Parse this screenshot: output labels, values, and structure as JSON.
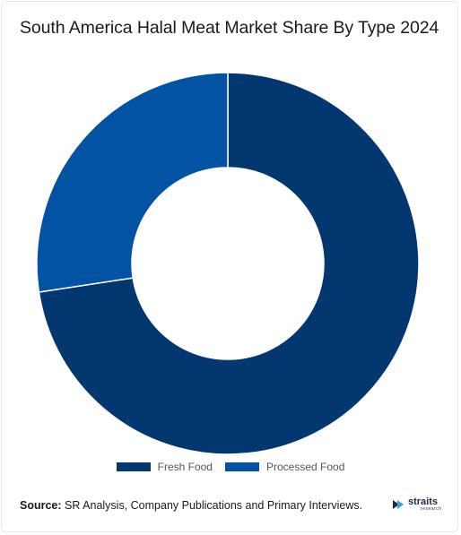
{
  "chart_data": {
    "type": "pie",
    "title": "South America Halal Meat Market Share By Type 2024",
    "donut": true,
    "categories": [
      "Fresh Food",
      "Processed Food"
    ],
    "values": [
      72.6,
      27.4
    ],
    "colors": [
      "#033770",
      "#0353a4"
    ],
    "legend_position": "bottom"
  },
  "source": {
    "label": "Source:",
    "text": " SR Analysis, Company Publications and Primary Interviews."
  },
  "logo": {
    "word": "straits",
    "sub": "research",
    "icon": "straits-logo-icon"
  }
}
